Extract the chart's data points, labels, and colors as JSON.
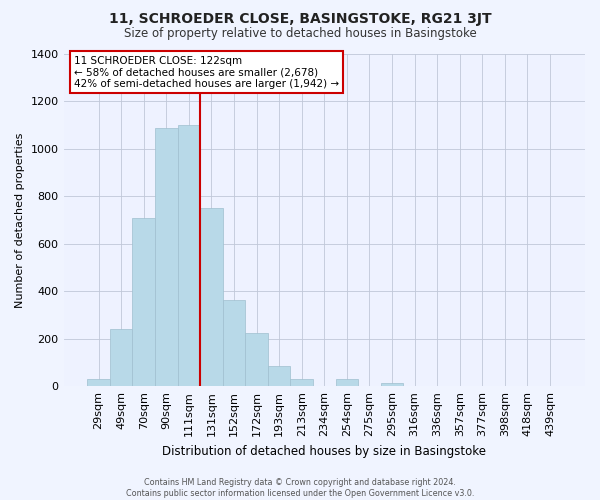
{
  "title": "11, SCHROEDER CLOSE, BASINGSTOKE, RG21 3JT",
  "subtitle": "Size of property relative to detached houses in Basingstoke",
  "xlabel": "Distribution of detached houses by size in Basingstoke",
  "ylabel": "Number of detached properties",
  "bar_labels": [
    "29sqm",
    "49sqm",
    "70sqm",
    "90sqm",
    "111sqm",
    "131sqm",
    "152sqm",
    "172sqm",
    "193sqm",
    "213sqm",
    "234sqm",
    "254sqm",
    "275sqm",
    "295sqm",
    "316sqm",
    "336sqm",
    "357sqm",
    "377sqm",
    "398sqm",
    "418sqm",
    "439sqm"
  ],
  "bar_values": [
    30,
    240,
    710,
    1090,
    1100,
    750,
    365,
    225,
    85,
    30,
    0,
    30,
    0,
    15,
    0,
    0,
    0,
    0,
    0,
    0,
    0
  ],
  "bar_color": "#b8d9e8",
  "bar_edge_color": "#9fbfcf",
  "vline_color": "#cc0000",
  "ylim": [
    0,
    1400
  ],
  "yticks": [
    0,
    200,
    400,
    600,
    800,
    1000,
    1200,
    1400
  ],
  "annotation_title": "11 SCHROEDER CLOSE: 122sqm",
  "annotation_line1": "← 58% of detached houses are smaller (2,678)",
  "annotation_line2": "42% of semi-detached houses are larger (1,942) →",
  "footer_line1": "Contains HM Land Registry data © Crown copyright and database right 2024.",
  "footer_line2": "Contains public sector information licensed under the Open Government Licence v3.0.",
  "bg_color": "#f0f4ff",
  "plot_bg_color": "#eef2ff"
}
